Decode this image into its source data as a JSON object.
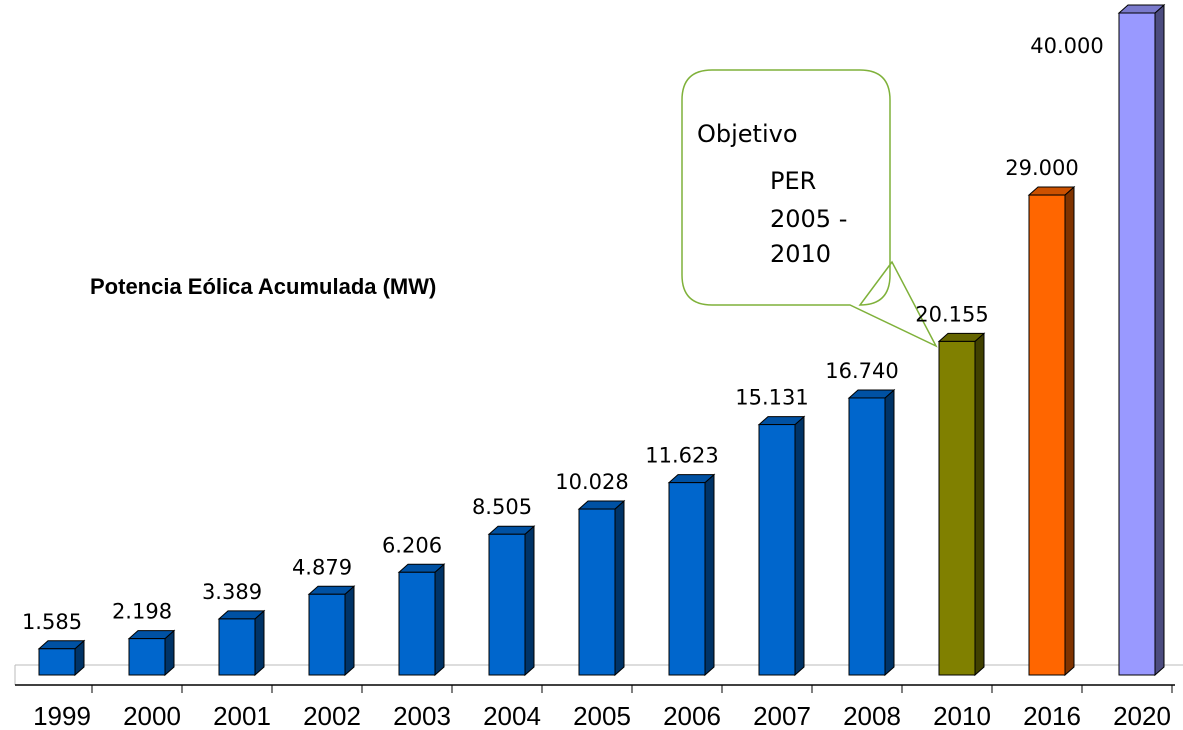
{
  "chart_data": {
    "type": "bar3d",
    "title": "Potencia Eólica Acumulada (MW)",
    "categories": [
      "1999",
      "2000",
      "2001",
      "2002",
      "2003",
      "2004",
      "2005",
      "2006",
      "2007",
      "2008",
      "2010",
      "2016",
      "2020"
    ],
    "values": [
      1585,
      2198,
      3389,
      4879,
      6206,
      8505,
      10028,
      11623,
      15131,
      16740,
      20155,
      29000,
      40000
    ],
    "value_labels": [
      "1.585",
      "2.198",
      "3.389",
      "4.879",
      "6.206",
      "8.505",
      "10.028",
      "11.623",
      "15.131",
      "16.740",
      "20.155",
      "29.000",
      "40.000"
    ],
    "colors": [
      "#0066cc",
      "#0066cc",
      "#0066cc",
      "#0066cc",
      "#0066cc",
      "#0066cc",
      "#0066cc",
      "#0066cc",
      "#0066cc",
      "#0066cc",
      "#808000",
      "#ff6600",
      "#9999ff"
    ],
    "annotation": [
      "Objetivo",
      "PER",
      "2005 -",
      "2010"
    ]
  }
}
